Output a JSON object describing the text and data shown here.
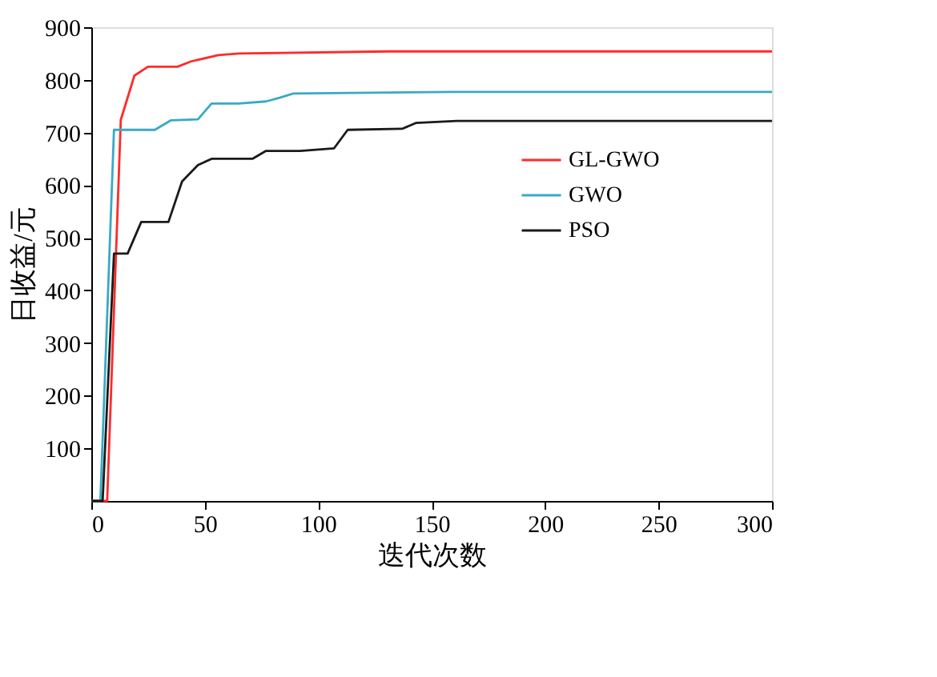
{
  "chart_data": {
    "type": "line",
    "xlabel": "迭代次数",
    "ylabel": "日收益/元",
    "xlim": [
      0,
      300
    ],
    "xticks": [
      0,
      50,
      100,
      150,
      200,
      250,
      300
    ],
    "ylim": [
      0,
      900
    ],
    "yticks": [
      100,
      200,
      300,
      400,
      500,
      600,
      700,
      800,
      900
    ],
    "grid": false,
    "legend": "top right",
    "marker": "none",
    "line_style": "solid",
    "series": [
      {
        "name": "GL-GWO",
        "color": "#ff2a2a",
        "x": [
          0,
          7,
          13,
          19,
          25,
          38,
          44,
          56,
          65,
          131,
          300
        ],
        "values": [
          0,
          0,
          724,
          808,
          825,
          825,
          835,
          847,
          850,
          854,
          854
        ]
      },
      {
        "name": "GWO",
        "color": "#3aa9c4",
        "x": [
          0,
          4,
          10,
          28,
          35,
          47,
          53,
          65,
          77,
          83,
          89,
          159,
          300
        ],
        "values": [
          0,
          0,
          705,
          705,
          723,
          725,
          755,
          755,
          759,
          766,
          774,
          777,
          777
        ]
      },
      {
        "name": "PSO",
        "color": "#1a1a1a",
        "x": [
          0,
          5,
          10,
          16,
          22,
          34,
          40,
          47,
          53,
          71,
          77,
          92,
          107,
          113,
          137,
          143,
          161,
          300
        ],
        "values": [
          0,
          0,
          470,
          470,
          530,
          530,
          607,
          638,
          650,
          650,
          665,
          665,
          670,
          705,
          707,
          718,
          722,
          722
        ]
      }
    ]
  }
}
